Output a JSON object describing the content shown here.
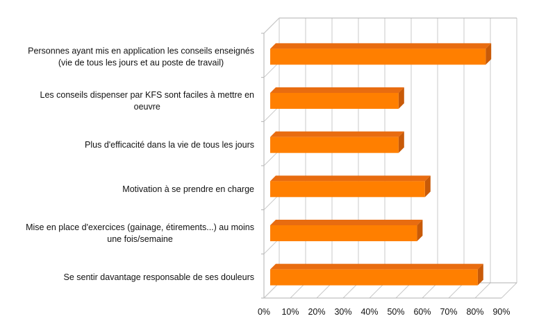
{
  "chart_data": {
    "type": "bar",
    "orientation": "horizontal",
    "three_d": true,
    "categories": [
      [
        "Personnes ayant mis en application les conseils enseignés",
        "(vie de tous les jours et au poste de travail)"
      ],
      [
        "Les conseils dispenser par KFS sont faciles à mettre en",
        "oeuvre"
      ],
      [
        "Plus d'efficacité dans la vie de tous les jours"
      ],
      [
        "Motivation à se prendre en charge"
      ],
      [
        "Mise en place d'exercices (gainage, étirements...) au moins",
        "une fois/semaine"
      ],
      [
        "Se sentir davantage responsable de ses douleurs"
      ]
    ],
    "values": [
      84,
      51,
      51,
      61,
      58,
      81
    ],
    "xlim": [
      0,
      90
    ],
    "xticks": [
      "0%",
      "10%",
      "20%",
      "30%",
      "40%",
      "50%",
      "60%",
      "70%",
      "80%",
      "90%"
    ],
    "grid": true,
    "legend": "none",
    "bar_color": "#ff7f00",
    "bar_top_color": "#e86c10",
    "bar_side_color": "#c85a08"
  }
}
